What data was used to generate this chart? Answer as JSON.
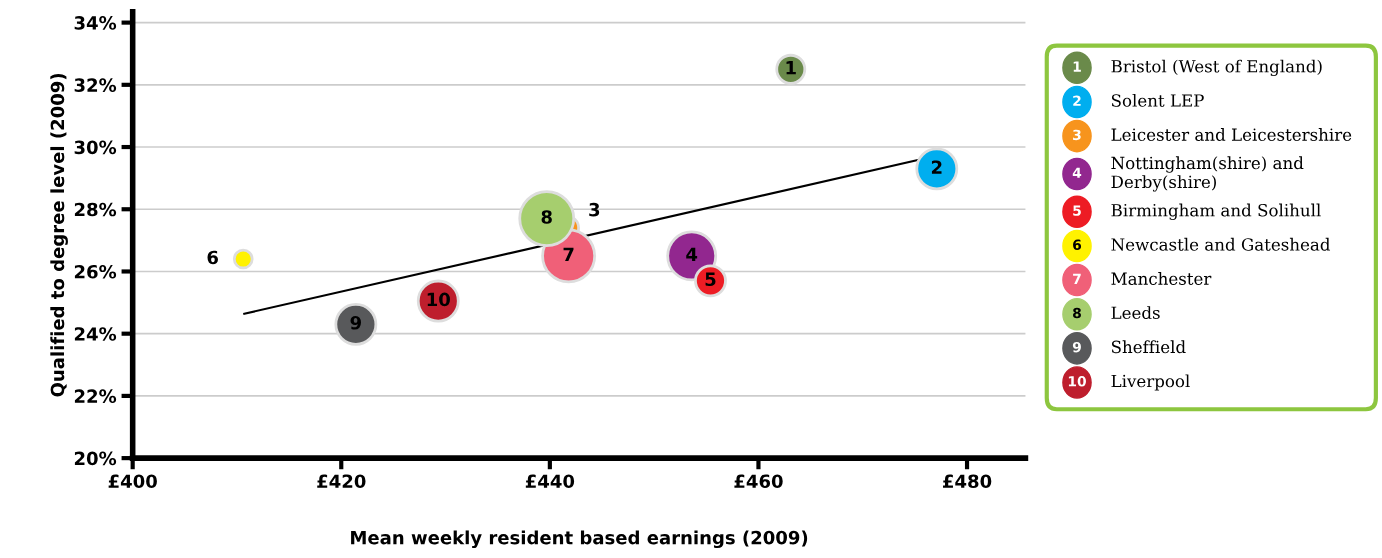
{
  "chart_data": {
    "type": "bubble",
    "xlabel": "Mean weekly resident based earnings (2009)",
    "ylabel": "Qualified to degree level (2009)",
    "xlim": [
      400,
      485.6
    ],
    "ylim": [
      20,
      34.35
    ],
    "xticks": [
      {
        "value": 400,
        "label": "£400"
      },
      {
        "value": 420,
        "label": "£420"
      },
      {
        "value": 440,
        "label": "£440"
      },
      {
        "value": 460,
        "label": "£460"
      },
      {
        "value": 480,
        "label": "£480"
      }
    ],
    "yticks": [
      {
        "value": 20,
        "label": "20%"
      },
      {
        "value": 22,
        "label": "22%"
      },
      {
        "value": 24,
        "label": "24%"
      },
      {
        "value": 26,
        "label": "26%"
      },
      {
        "value": 28,
        "label": "28%"
      },
      {
        "value": 30,
        "label": "30%"
      },
      {
        "value": 32,
        "label": "32%"
      },
      {
        "value": 34,
        "label": "34%"
      }
    ],
    "grid": "y",
    "legend": "right",
    "series": [
      {
        "name": "Bristol (West of England)",
        "color": "#6a8a4a",
        "x": [
          463.1
        ],
        "values": [
          32.5
        ],
        "sizes": [
          0.27
        ]
      },
      {
        "name": "Solent LEP",
        "color": "#00aeef",
        "x": [
          477.1
        ],
        "values": [
          29.3
        ],
        "sizes": [
          0.55
        ]
      },
      {
        "name": "Leicester and Leicestershire",
        "color": "#f7941d",
        "x": [
          441.6
        ],
        "values": [
          27.4
        ],
        "sizes": [
          0.2
        ]
      },
      {
        "name": "Nottingham(shire) and\nDerby(shire)",
        "color": "#92278f",
        "x": [
          453.6
        ],
        "values": [
          26.5
        ],
        "sizes": [
          0.79
        ]
      },
      {
        "name": "Birmingham and Solihull",
        "color": "#ed1c24",
        "x": [
          455.4
        ],
        "values": [
          25.7
        ],
        "sizes": [
          0.31
        ]
      },
      {
        "name": "Newcastle and Gateshead",
        "color": "#fff200",
        "x": [
          410.6
        ],
        "values": [
          26.4
        ],
        "sizes": [
          0.11
        ]
      },
      {
        "name": "Manchester",
        "color": "#f06078",
        "x": [
          441.8
        ],
        "values": [
          26.5
        ],
        "sizes": [
          0.93
        ]
      },
      {
        "name": "Leeds",
        "color": "#a6ce6e",
        "x": [
          439.7
        ],
        "values": [
          27.7
        ],
        "sizes": [
          1
        ]
      },
      {
        "name": "Sheffield",
        "color": "#58595b",
        "x": [
          421.4
        ],
        "values": [
          24.3
        ],
        "sizes": [
          0.55
        ]
      },
      {
        "name": "Liverpool",
        "color": "#be1e2d",
        "x": [
          429.3
        ],
        "values": [
          25.05
        ],
        "sizes": [
          0.55
        ]
      },
      {
        "type": "line",
        "color": "#000000",
        "x": [
          410.7,
          475.5
        ],
        "values": [
          24.64,
          29.6
        ]
      }
    ],
    "annotations": [
      {
        "text": "1",
        "x": 463.1,
        "y": 32.5
      },
      {
        "text": "2",
        "x": 477.1,
        "y": 29.3
      },
      {
        "text": "3",
        "x": 441.6,
        "y": 27.4
      },
      {
        "text": "4",
        "x": 453.6,
        "y": 26.5
      },
      {
        "text": "5",
        "x": 455.4,
        "y": 25.7
      },
      {
        "text": "6",
        "x": 410.6,
        "y": 26.4
      },
      {
        "text": "7",
        "x": 441.8,
        "y": 26.5
      },
      {
        "text": "8",
        "x": 439.7,
        "y": 27.7
      },
      {
        "text": "9",
        "x": 421.4,
        "y": 24.3
      },
      {
        "text": "10",
        "x": 429.3,
        "y": 25.05
      }
    ]
  }
}
